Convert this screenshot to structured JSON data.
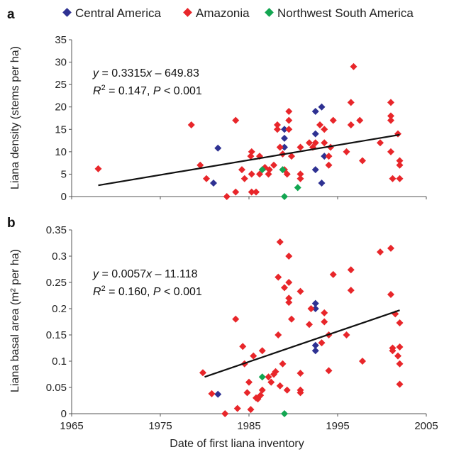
{
  "colors": {
    "Central America": "#2e3192",
    "Amazonia": "#e8262a",
    "Northwest South America": "#13a651"
  },
  "legend": [
    {
      "name": "Central America",
      "color": "#2e3192"
    },
    {
      "name": "Amazonia",
      "color": "#e8262a"
    },
    {
      "name": "Northwest South America",
      "color": "#13a651"
    }
  ],
  "chart_data": {
    "type": "scatter",
    "xlabel": "Date of first liana inventory",
    "xlim": [
      1965,
      2005
    ],
    "xticks": [
      1965,
      1975,
      1985,
      1995,
      2005
    ],
    "panels": [
      {
        "letter": "a",
        "ylabel": "Liana density (stems per ha)",
        "ylim": [
          0,
          35
        ],
        "yticks": [
          0,
          5,
          10,
          15,
          20,
          25,
          30,
          35
        ],
        "equation": {
          "y": "y",
          "eq": " = 0.3315",
          "x": "x",
          "rest": " – 649.83"
        },
        "r2": {
          "r": "R",
          "sup": "2",
          "mid": " = 0.147, ",
          "p": "P",
          "tail": " < 0.001"
        },
        "trend": {
          "x": [
            1968,
            2002
          ],
          "y": [
            2.5,
            13.8
          ]
        },
        "series": [
          {
            "name": "Central America",
            "points": [
              [
                1981.5,
                10.8
              ],
              [
                1981.0,
                3.0
              ],
              [
                1989.0,
                15.0
              ],
              [
                1989.0,
                13.0
              ],
              [
                1989.0,
                11.0
              ],
              [
                1992.5,
                19.0
              ],
              [
                1992.5,
                14.0
              ],
              [
                1993.2,
                20.0
              ],
              [
                1993.5,
                9.0
              ],
              [
                1992.5,
                6.0
              ],
              [
                1993.2,
                3.0
              ]
            ]
          },
          {
            "name": "Amazonia",
            "points": [
              [
                1968.0,
                6.2
              ],
              [
                1978.5,
                16.0
              ],
              [
                1979.5,
                7.0
              ],
              [
                1980.2,
                4.0
              ],
              [
                1982.5,
                0.0
              ],
              [
                1983.5,
                17.0
              ],
              [
                1983.5,
                1.0
              ],
              [
                1984.2,
                6.0
              ],
              [
                1984.5,
                4.0
              ],
              [
                1985.2,
                9.0
              ],
              [
                1985.3,
                10.0
              ],
              [
                1985.3,
                5.0
              ],
              [
                1985.3,
                1.0
              ],
              [
                1985.8,
                1.0
              ],
              [
                1986.2,
                9.0
              ],
              [
                1986.2,
                5.0
              ],
              [
                1986.8,
                6.5
              ],
              [
                1987.2,
                5.0
              ],
              [
                1987.3,
                6.0
              ],
              [
                1987.8,
                7.0
              ],
              [
                1988.2,
                15.0
              ],
              [
                1988.2,
                16.0
              ],
              [
                1988.5,
                11.0
              ],
              [
                1988.8,
                9.5
              ],
              [
                1989.0,
                6.0
              ],
              [
                1989.3,
                5.0
              ],
              [
                1989.5,
                19.0
              ],
              [
                1989.5,
                17.0
              ],
              [
                1989.5,
                15.0
              ],
              [
                1989.8,
                9.0
              ],
              [
                1990.8,
                11.0
              ],
              [
                1990.8,
                5.0
              ],
              [
                1990.8,
                4.0
              ],
              [
                1991.8,
                12.0
              ],
              [
                1992.2,
                11.0
              ],
              [
                1992.5,
                12.0
              ],
              [
                1993.0,
                16.0
              ],
              [
                1993.5,
                15.0
              ],
              [
                1993.5,
                12.0
              ],
              [
                1994.0,
                7.0
              ],
              [
                1994.0,
                9.0
              ],
              [
                1994.2,
                11.0
              ],
              [
                1994.5,
                17.0
              ],
              [
                1996.0,
                10.0
              ],
              [
                1996.5,
                21.0
              ],
              [
                1996.5,
                16.0
              ],
              [
                1996.8,
                29.0
              ],
              [
                1997.5,
                17.0
              ],
              [
                1997.8,
                8.0
              ],
              [
                1999.8,
                12.0
              ],
              [
                2001.0,
                21.0
              ],
              [
                2001.0,
                18.0
              ],
              [
                2001.0,
                17.0
              ],
              [
                2001.0,
                10.0
              ],
              [
                2001.2,
                4.0
              ],
              [
                2001.8,
                14.0
              ],
              [
                2002.0,
                8.0
              ],
              [
                2002.0,
                7.0
              ],
              [
                2002.0,
                4.0
              ]
            ]
          },
          {
            "name": "Northwest South America",
            "points": [
              [
                1986.5,
                6.0
              ],
              [
                1988.8,
                6.0
              ],
              [
                1989.0,
                0.0
              ],
              [
                1990.5,
                2.0
              ]
            ]
          }
        ]
      },
      {
        "letter": "b",
        "ylabel": "Liana basal area (m² per ha)",
        "ylim": [
          0,
          0.35
        ],
        "yticks": [
          0,
          0.05,
          0.1,
          0.15,
          0.2,
          0.25,
          0.3,
          0.35
        ],
        "equation": {
          "y": "y",
          "eq": " = 0.0057",
          "x": "x",
          "rest": " – 11.118"
        },
        "r2": {
          "r": "R",
          "sup": "2",
          "mid": " = 0.160, ",
          "p": "P",
          "tail": " < 0.001"
        },
        "trend": {
          "x": [
            1980,
            2002
          ],
          "y": [
            0.07,
            0.197
          ]
        },
        "series": [
          {
            "name": "Central America",
            "points": [
              [
                1981.5,
                0.037
              ],
              [
                1992.5,
                0.21
              ],
              [
                1992.5,
                0.2
              ],
              [
                1992.5,
                0.13
              ],
              [
                1992.5,
                0.12
              ]
            ]
          },
          {
            "name": "Amazonia",
            "points": [
              [
                1979.8,
                0.078
              ],
              [
                1980.8,
                0.038
              ],
              [
                1982.3,
                0.0
              ],
              [
                1983.5,
                0.18
              ],
              [
                1983.7,
                0.01
              ],
              [
                1984.3,
                0.128
              ],
              [
                1984.5,
                0.095
              ],
              [
                1984.8,
                0.04
              ],
              [
                1985.0,
                0.06
              ],
              [
                1985.2,
                0.008
              ],
              [
                1985.5,
                0.11
              ],
              [
                1985.8,
                0.03
              ],
              [
                1986.0,
                0.028
              ],
              [
                1986.3,
                0.035
              ],
              [
                1986.5,
                0.12
              ],
              [
                1986.5,
                0.045
              ],
              [
                1987.2,
                0.07
              ],
              [
                1987.5,
                0.06
              ],
              [
                1987.8,
                0.075
              ],
              [
                1988.0,
                0.08
              ],
              [
                1988.3,
                0.15
              ],
              [
                1988.3,
                0.26
              ],
              [
                1988.5,
                0.327
              ],
              [
                1988.5,
                0.053
              ],
              [
                1988.8,
                0.095
              ],
              [
                1989.0,
                0.24
              ],
              [
                1989.3,
                0.045
              ],
              [
                1989.5,
                0.22
              ],
              [
                1989.5,
                0.212
              ],
              [
                1989.5,
                0.3
              ],
              [
                1989.5,
                0.25
              ],
              [
                1989.8,
                0.18
              ],
              [
                1990.8,
                0.233
              ],
              [
                1990.8,
                0.077
              ],
              [
                1990.8,
                0.045
              ],
              [
                1990.8,
                0.04
              ],
              [
                1991.8,
                0.17
              ],
              [
                1992.0,
                0.2
              ],
              [
                1993.2,
                0.135
              ],
              [
                1993.5,
                0.192
              ],
              [
                1993.5,
                0.175
              ],
              [
                1994.0,
                0.15
              ],
              [
                1994.0,
                0.082
              ],
              [
                1994.5,
                0.265
              ],
              [
                1996.0,
                0.15
              ],
              [
                1996.5,
                0.274
              ],
              [
                1996.5,
                0.235
              ],
              [
                1997.8,
                0.1
              ],
              [
                1999.8,
                0.308
              ],
              [
                2001.0,
                0.315
              ],
              [
                2001.0,
                0.227
              ],
              [
                2001.2,
                0.125
              ],
              [
                2001.2,
                0.12
              ],
              [
                2001.5,
                0.19
              ],
              [
                2001.8,
                0.11
              ],
              [
                2002.0,
                0.173
              ],
              [
                2002.0,
                0.127
              ],
              [
                2002.0,
                0.095
              ],
              [
                2002.0,
                0.056
              ]
            ]
          },
          {
            "name": "Northwest South America",
            "points": [
              [
                1986.5,
                0.07
              ],
              [
                1989.0,
                0.0
              ]
            ]
          }
        ]
      }
    ]
  }
}
